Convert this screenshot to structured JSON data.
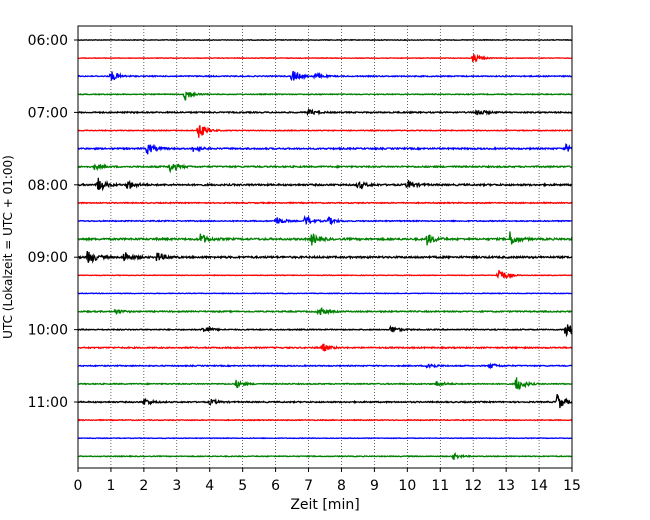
{
  "chart_data": {
    "type": "line",
    "title": "",
    "xlabel": "Zeit  [min]",
    "ylabel": "UTC (Lokalzeit = UTC + 01:00)",
    "xlim": [
      0,
      15
    ],
    "x_ticks": [
      "0",
      "1",
      "2",
      "3",
      "4",
      "5",
      "6",
      "7",
      "8",
      "9",
      "10",
      "11",
      "12",
      "13",
      "14",
      "15"
    ],
    "y_tick_labels": [
      "06:00",
      "07:00",
      "08:00",
      "09:00",
      "10:00",
      "11:00"
    ],
    "grid": "vertical dotted",
    "trace_start": "06:00",
    "trace_interval_minutes": 15,
    "trace_colors": [
      "#000000",
      "#ff0000",
      "#0000ff",
      "#008000"
    ],
    "traces": [
      {
        "time": "06:00",
        "color": "#000000",
        "amplitude": 0.3,
        "events": []
      },
      {
        "time": "06:15",
        "color": "#ff0000",
        "amplitude": 0.3,
        "events": [
          {
            "t": 12.0,
            "a": 5
          }
        ]
      },
      {
        "time": "06:30",
        "color": "#0000ff",
        "amplitude": 0.5,
        "events": [
          {
            "t": 1.0,
            "a": 6
          },
          {
            "t": 6.5,
            "a": 7
          },
          {
            "t": 7.2,
            "a": 3
          }
        ]
      },
      {
        "time": "06:45",
        "color": "#008000",
        "amplitude": 0.4,
        "events": [
          {
            "t": 3.25,
            "a": 7
          }
        ]
      },
      {
        "time": "07:00",
        "color": "#000000",
        "amplitude": 0.6,
        "events": [
          {
            "t": 7.0,
            "a": 3
          },
          {
            "t": 12.1,
            "a": 4
          }
        ]
      },
      {
        "time": "07:15",
        "color": "#ff0000",
        "amplitude": 0.4,
        "events": [
          {
            "t": 3.65,
            "a": 9
          }
        ]
      },
      {
        "time": "07:30",
        "color": "#0000ff",
        "amplitude": 0.7,
        "events": [
          {
            "t": 2.1,
            "a": 6
          },
          {
            "t": 3.5,
            "a": 3
          },
          {
            "t": 14.8,
            "a": 4
          }
        ]
      },
      {
        "time": "07:45",
        "color": "#008000",
        "amplitude": 0.7,
        "events": [
          {
            "t": 2.8,
            "a": 6
          },
          {
            "t": 0.5,
            "a": 3
          }
        ]
      },
      {
        "time": "08:00",
        "color": "#000000",
        "amplitude": 0.8,
        "events": [
          {
            "t": 0.6,
            "a": 8
          },
          {
            "t": 1.5,
            "a": 5
          },
          {
            "t": 8.5,
            "a": 4
          },
          {
            "t": 10.0,
            "a": 5
          }
        ]
      },
      {
        "time": "08:15",
        "color": "#ff0000",
        "amplitude": 0.5,
        "events": []
      },
      {
        "time": "08:30",
        "color": "#0000ff",
        "amplitude": 0.5,
        "events": [
          {
            "t": 6.0,
            "a": 5
          },
          {
            "t": 6.9,
            "a": 6
          },
          {
            "t": 7.6,
            "a": 4
          }
        ]
      },
      {
        "time": "08:45",
        "color": "#008000",
        "amplitude": 0.9,
        "events": [
          {
            "t": 3.7,
            "a": 6
          },
          {
            "t": 7.1,
            "a": 6
          },
          {
            "t": 10.6,
            "a": 6
          },
          {
            "t": 13.1,
            "a": 8
          }
        ]
      },
      {
        "time": "09:00",
        "color": "#000000",
        "amplitude": 0.9,
        "events": [
          {
            "t": 0.3,
            "a": 8
          },
          {
            "t": 1.4,
            "a": 6
          },
          {
            "t": 2.4,
            "a": 5
          }
        ]
      },
      {
        "time": "09:15",
        "color": "#ff0000",
        "amplitude": 0.3,
        "events": [
          {
            "t": 12.75,
            "a": 9
          }
        ]
      },
      {
        "time": "09:30",
        "color": "#0000ff",
        "amplitude": 0.3,
        "events": []
      },
      {
        "time": "09:45",
        "color": "#008000",
        "amplitude": 0.6,
        "events": [
          {
            "t": 7.3,
            "a": 5
          },
          {
            "t": 1.1,
            "a": 3
          }
        ]
      },
      {
        "time": "10:00",
        "color": "#000000",
        "amplitude": 0.5,
        "events": [
          {
            "t": 3.8,
            "a": 4
          },
          {
            "t": 9.5,
            "a": 4
          },
          {
            "t": 14.8,
            "a": 11
          }
        ]
      },
      {
        "time": "10:15",
        "color": "#ff0000",
        "amplitude": 0.6,
        "events": [
          {
            "t": 7.4,
            "a": 5
          }
        ]
      },
      {
        "time": "10:30",
        "color": "#0000ff",
        "amplitude": 0.5,
        "events": [
          {
            "t": 10.6,
            "a": 4
          },
          {
            "t": 12.5,
            "a": 3
          }
        ]
      },
      {
        "time": "10:45",
        "color": "#008000",
        "amplitude": 0.5,
        "events": [
          {
            "t": 4.8,
            "a": 4
          },
          {
            "t": 13.3,
            "a": 9
          },
          {
            "t": 10.9,
            "a": 3
          }
        ]
      },
      {
        "time": "11:00",
        "color": "#000000",
        "amplitude": 0.6,
        "events": [
          {
            "t": 2.0,
            "a": 4
          },
          {
            "t": 4.0,
            "a": 3
          },
          {
            "t": 14.55,
            "a": 9
          }
        ]
      },
      {
        "time": "11:15",
        "color": "#ff0000",
        "amplitude": 0.4,
        "events": []
      },
      {
        "time": "11:30",
        "color": "#0000ff",
        "amplitude": 0.3,
        "events": []
      },
      {
        "time": "11:45",
        "color": "#008000",
        "amplitude": 0.4,
        "events": [
          {
            "t": 11.4,
            "a": 3
          }
        ]
      }
    ]
  }
}
